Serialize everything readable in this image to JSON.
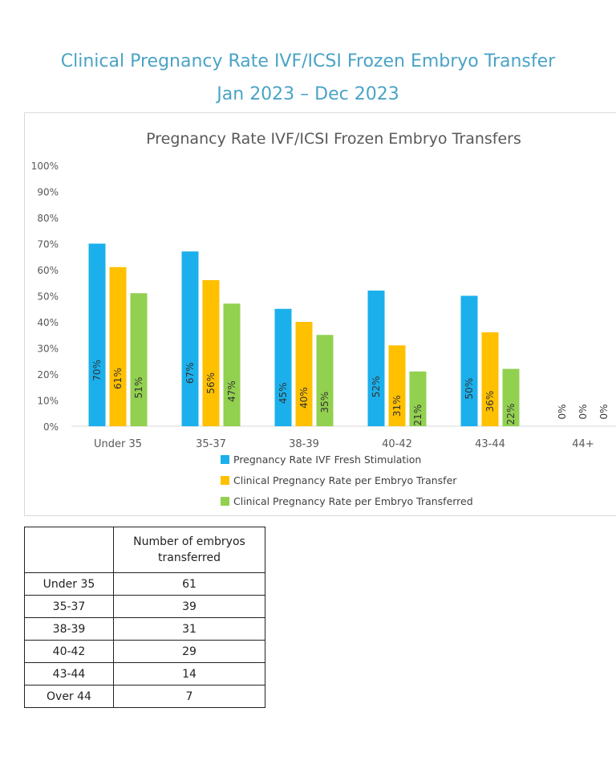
{
  "page": {
    "title_line1": "Clinical Pregnancy Rate IVF/ICSI Frozen Embryo Transfer",
    "title_line2": "Jan 2023 – Dec 2023"
  },
  "chart_data": {
    "type": "bar",
    "title": "Pregnancy Rate IVF/ICSI Frozen Embryo Transfers",
    "categories": [
      "Under 35",
      "35-37",
      "38-39",
      "40-42",
      "43-44",
      "44+"
    ],
    "series": [
      {
        "name": "Pregnancy Rate IVF Fresh Stimulation",
        "color": "#1bb0ec",
        "values": [
          70,
          67,
          45,
          52,
          50,
          0
        ]
      },
      {
        "name": "Clinical Pregnancy Rate per Embryo Transfer",
        "color": "#ffc000",
        "values": [
          61,
          56,
          40,
          31,
          36,
          0
        ]
      },
      {
        "name": "Clinical Pregnancy Rate per Embryo Transferred",
        "color": "#92d050",
        "values": [
          51,
          47,
          35,
          21,
          22,
          0
        ]
      }
    ],
    "data_labels": [
      [
        "70%",
        "67%",
        "45%",
        "52%",
        "50%",
        "0%"
      ],
      [
        "61%",
        "56%",
        "40%",
        "31%",
        "36%",
        "0%"
      ],
      [
        "51%",
        "47%",
        "35%",
        "21%",
        "22%",
        "0%"
      ]
    ],
    "y_ticks": [
      "0%",
      "10%",
      "20%",
      "30%",
      "40%",
      "50%",
      "60%",
      "70%",
      "80%",
      "90%",
      "100%"
    ],
    "ylim": [
      0,
      100
    ],
    "legend_position": "bottom",
    "grid": false
  },
  "table": {
    "header_blank": "",
    "header": "Number of embryos transferred",
    "rows": [
      {
        "label": "Under 35",
        "value": "61"
      },
      {
        "label": "35-37",
        "value": "39"
      },
      {
        "label": "38-39",
        "value": "31"
      },
      {
        "label": "40-42",
        "value": "29"
      },
      {
        "label": "43-44",
        "value": "14"
      },
      {
        "label": "Over 44",
        "value": "7"
      }
    ]
  }
}
